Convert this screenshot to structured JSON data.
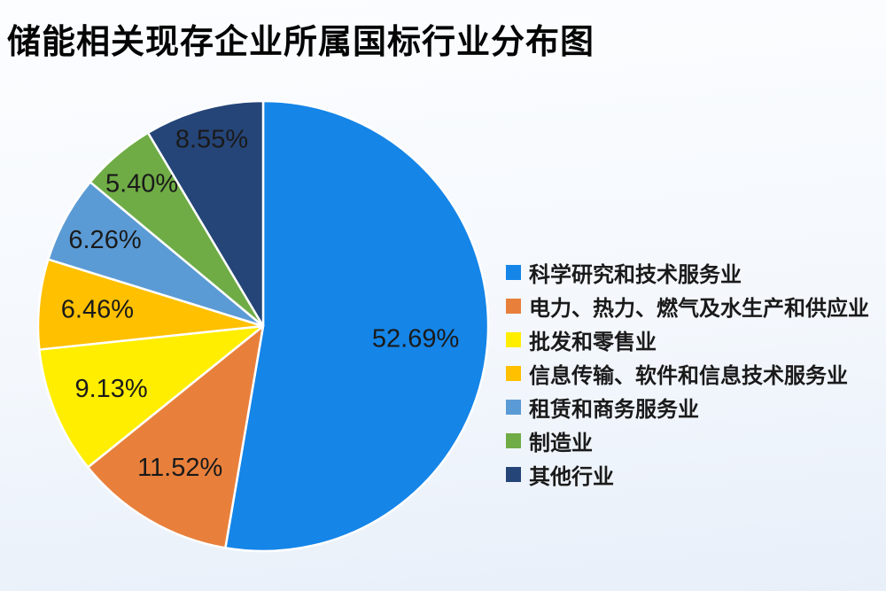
{
  "title": "储能相关现存企业所属国标行业分布图",
  "chart_data": {
    "type": "pie",
    "title": "储能相关现存企业所属国标行业分布图",
    "start_angle_deg": 0,
    "direction": "clockwise",
    "legend_position": "right",
    "data_labels": "percent-inside",
    "series": [
      {
        "label": "科学研究和技术服务业",
        "value": 52.69,
        "display": "52.69%",
        "color": "#1585E8"
      },
      {
        "label": "电力、热力、燃气及水生产和供应业",
        "value": 11.52,
        "display": "11.52%",
        "color": "#E8803C"
      },
      {
        "label": "批发和零售业",
        "value": 9.13,
        "display": "9.13%",
        "color": "#FFEE00"
      },
      {
        "label": "信息传输、软件和信息技术服务业",
        "value": 6.46,
        "display": "6.46%",
        "color": "#FFC000"
      },
      {
        "label": "租赁和商务服务业",
        "value": 6.26,
        "display": "6.26%",
        "color": "#5B9BD5"
      },
      {
        "label": "制造业",
        "value": 5.4,
        "display": "5.40%",
        "color": "#6FAC46"
      },
      {
        "label": "其他行业",
        "value": 8.55,
        "display": "8.55%",
        "color": "#254578"
      }
    ]
  },
  "colors": {
    "background_top": "#FCFDFF",
    "background_bottom": "#E8EFF9",
    "slice_border": "#FFFFFF",
    "label_text": "#1A1A1A",
    "title_text": "#050505"
  }
}
